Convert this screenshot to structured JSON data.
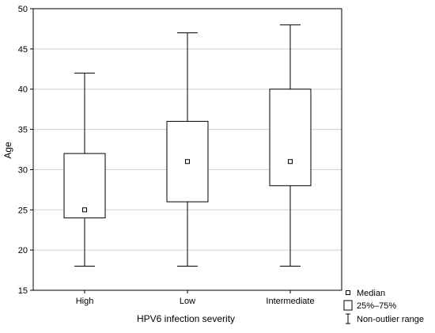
{
  "chart_data": {
    "type": "boxplot",
    "categories": [
      "High",
      "Low",
      "Intermediate"
    ],
    "boxes": [
      {
        "category": "High",
        "min": 18,
        "q1": 24,
        "median": 25,
        "q3": 32,
        "max": 42
      },
      {
        "category": "Low",
        "min": 18,
        "q1": 26,
        "median": 31,
        "q3": 36,
        "max": 47
      },
      {
        "category": "Intermediate",
        "min": 18,
        "q1": 28,
        "median": 31,
        "q3": 40,
        "max": 48
      }
    ],
    "xlabel": "HPV6 infection severity",
    "ylabel": "Age",
    "ylim": [
      15,
      50
    ],
    "yticks": [
      15,
      20,
      25,
      30,
      35,
      40,
      45,
      50
    ],
    "grid": true,
    "legend": {
      "position": "bottom-right",
      "entries": [
        "Median",
        "25%–75%",
        "Non-outlier range"
      ]
    }
  }
}
